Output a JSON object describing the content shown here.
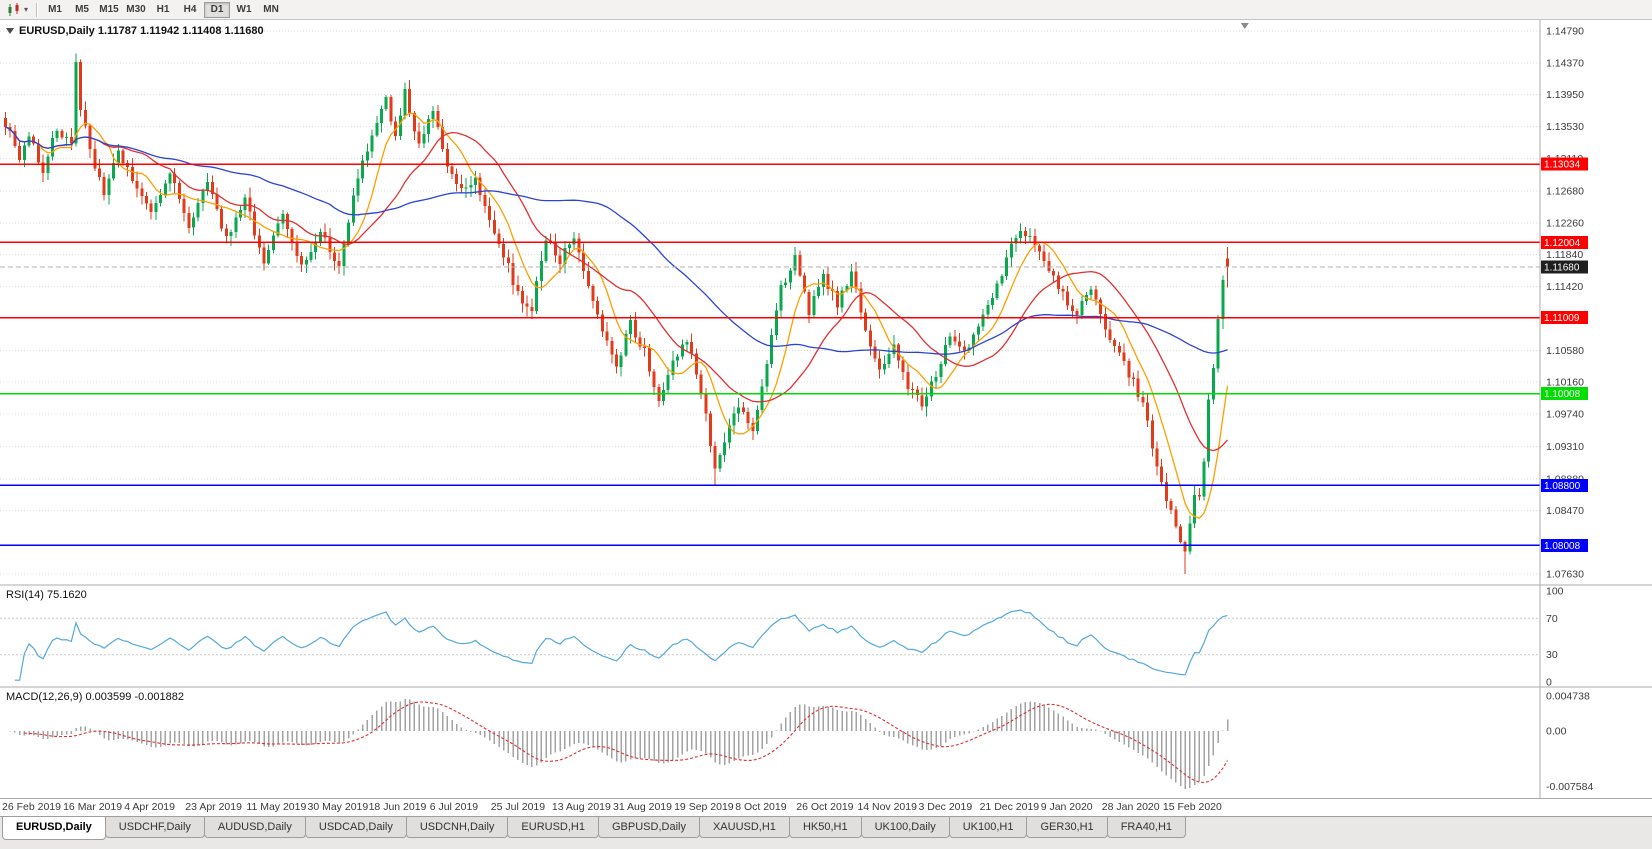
{
  "toolbar": {
    "timeframes": [
      {
        "label": "M1",
        "active": false
      },
      {
        "label": "M5",
        "active": false
      },
      {
        "label": "M15",
        "active": false
      },
      {
        "label": "M30",
        "active": false
      },
      {
        "label": "H1",
        "active": false
      },
      {
        "label": "H4",
        "active": false
      },
      {
        "label": "D1",
        "active": true
      },
      {
        "label": "W1",
        "active": false
      },
      {
        "label": "MN",
        "active": false
      }
    ]
  },
  "chart_data": {
    "type": "candlestick",
    "symbol": "EURUSD",
    "period": "Daily",
    "header": "EURUSD,Daily 1.11787 1.11942 1.11408 1.11680",
    "ohlc": {
      "open": 1.11787,
      "high": 1.11942,
      "low": 1.11408,
      "close": 1.1168
    },
    "price_axis": {
      "max": 1.14935,
      "min": 1.07485,
      "labels": [
        "1.14790",
        "1.14370",
        "1.13950",
        "1.13530",
        "1.13110",
        "1.12680",
        "1.12260",
        "1.11840",
        "1.11420",
        "1.10580",
        "1.10160",
        "1.09740",
        "1.09310",
        "1.08880",
        "1.08470",
        "1.07630"
      ]
    },
    "x_axis_labels": [
      "26 Feb 2019",
      "16 Mar 2019",
      "4 Apr 2019",
      "23 Apr 2019",
      "11 May 2019",
      "30 May 2019",
      "18 Jun 2019",
      "6 Jul 2019",
      "25 Jul 2019",
      "13 Aug 2019",
      "31 Aug 2019",
      "19 Sep 2019",
      "8 Oct 2019",
      "26 Oct 2019",
      "14 Nov 2019",
      "3 Dec 2019",
      "21 Dec 2019",
      "9 Jan 2020",
      "28 Jan 2020",
      "15 Feb 2020"
    ],
    "levels": [
      {
        "price": 1.13034,
        "label": "1.13034",
        "color": "#ff0000",
        "width": 1.2
      },
      {
        "price": 1.12004,
        "label": "1.12004",
        "color": "#ff0000",
        "width": 1.6
      },
      {
        "price": 1.11009,
        "label": "1.11009",
        "color": "#ff0000",
        "width": 1.2
      },
      {
        "price": 1.10008,
        "label": "1.10008",
        "color": "#00dd00",
        "width": 1.6
      },
      {
        "price": 1.088,
        "label": "1.08800",
        "color": "#0000ff",
        "width": 1.6
      },
      {
        "price": 1.08008,
        "label": "1.08008",
        "color": "#0000ff",
        "width": 1.6
      }
    ],
    "current_price": {
      "value": 1.1168,
      "label": "1.11680",
      "line_color": "#b0b0b0",
      "tag_color": "#1f1f1f"
    },
    "colors": {
      "bull": "#09a84e",
      "bear": "#e23b1c",
      "background": "#ffffff",
      "grid": "#dcdcdc"
    },
    "candle_count": 261,
    "close_anchors": [
      [
        0,
        1.1358
      ],
      [
        3,
        1.131
      ],
      [
        5,
        1.1342
      ],
      [
        8,
        1.1296
      ],
      [
        11,
        1.135
      ],
      [
        14,
        1.133
      ],
      [
        15,
        1.1435
      ],
      [
        16,
        1.1378
      ],
      [
        19,
        1.13
      ],
      [
        21,
        1.1262
      ],
      [
        24,
        1.132
      ],
      [
        27,
        1.1285
      ],
      [
        31,
        1.1235
      ],
      [
        35,
        1.129
      ],
      [
        39,
        1.1225
      ],
      [
        43,
        1.1275
      ],
      [
        47,
        1.1205
      ],
      [
        51,
        1.1255
      ],
      [
        55,
        1.1175
      ],
      [
        59,
        1.1235
      ],
      [
        63,
        1.1165
      ],
      [
        67,
        1.1215
      ],
      [
        71,
        1.1168
      ],
      [
        75,
        1.129
      ],
      [
        78,
        1.134
      ],
      [
        81,
        1.1388
      ],
      [
        83,
        1.134
      ],
      [
        85,
        1.1398
      ],
      [
        88,
        1.133
      ],
      [
        91,
        1.1372
      ],
      [
        94,
        1.13
      ],
      [
        97,
        1.127
      ],
      [
        100,
        1.1286
      ],
      [
        103,
        1.123
      ],
      [
        106,
        1.1185
      ],
      [
        109,
        1.113
      ],
      [
        112,
        1.1115
      ],
      [
        115,
        1.1205
      ],
      [
        118,
        1.1175
      ],
      [
        121,
        1.1212
      ],
      [
        124,
        1.1145
      ],
      [
        127,
        1.108
      ],
      [
        130,
        1.104
      ],
      [
        133,
        1.1092
      ],
      [
        136,
        1.1055
      ],
      [
        139,
        1.0995
      ],
      [
        142,
        1.1045
      ],
      [
        145,
        1.1072
      ],
      [
        148,
        1.1005
      ],
      [
        151,
        1.0905
      ],
      [
        153,
        1.0938
      ],
      [
        156,
        1.0985
      ],
      [
        159,
        1.0952
      ],
      [
        162,
        1.1045
      ],
      [
        165,
        1.114
      ],
      [
        168,
        1.1178
      ],
      [
        171,
        1.111
      ],
      [
        174,
        1.1152
      ],
      [
        177,
        1.112
      ],
      [
        180,
        1.1162
      ],
      [
        183,
        1.108
      ],
      [
        186,
        1.103
      ],
      [
        189,
        1.1065
      ],
      [
        192,
        1.101
      ],
      [
        195,
        1.0985
      ],
      [
        198,
        1.1025
      ],
      [
        201,
        1.1082
      ],
      [
        204,
        1.1052
      ],
      [
        207,
        1.1095
      ],
      [
        210,
        1.1125
      ],
      [
        213,
        1.118
      ],
      [
        216,
        1.1218
      ],
      [
        219,
        1.1196
      ],
      [
        222,
        1.1162
      ],
      [
        225,
        1.113
      ],
      [
        228,
        1.1105
      ],
      [
        231,
        1.1142
      ],
      [
        234,
        1.1085
      ],
      [
        237,
        1.1055
      ],
      [
        240,
        1.1015
      ],
      [
        242,
        1.0985
      ],
      [
        244,
        1.0935
      ],
      [
        246,
        1.0885
      ],
      [
        248,
        1.0845
      ],
      [
        250,
        1.08
      ],
      [
        251,
        1.0786
      ],
      [
        252,
        1.083
      ],
      [
        253,
        1.0872
      ],
      [
        254,
        1.0862
      ],
      [
        255,
        1.0905
      ],
      [
        256,
        1.0995
      ],
      [
        257,
        1.1035
      ],
      [
        258,
        1.1105
      ],
      [
        259,
        1.1145
      ],
      [
        260,
        1.1168
      ]
    ],
    "wick_high_overrides": [
      [
        15,
        1.1449
      ],
      [
        85,
        1.141
      ]
    ],
    "wick_low_overrides": [
      [
        151,
        1.0879
      ],
      [
        251,
        1.0763
      ]
    ],
    "moving_averages": [
      {
        "name": "ma-fast-line",
        "period": 8,
        "color": "#ff9f00"
      },
      {
        "name": "ma-mid-line",
        "period": 21,
        "color": "#e33030"
      },
      {
        "name": "ma-slow-line",
        "period": 55,
        "color": "#2b44d4"
      }
    ],
    "rsi": {
      "label": "RSI(14) 75.1620",
      "period": 14,
      "value": 75.162,
      "line_color": "#54a8dd",
      "level_lines": [
        70,
        30
      ],
      "axis_labels": [
        {
          "text": "100",
          "value": 100
        },
        {
          "text": "70",
          "value": 70
        },
        {
          "text": "30",
          "value": 30
        },
        {
          "text": "0",
          "value": 0
        }
      ]
    },
    "macd": {
      "label": "MACD(12,26,9) 0.003599 -0.001882",
      "fast": 12,
      "slow": 26,
      "signal_period": 9,
      "macd_value": 0.003599,
      "signal_value": -0.001882,
      "scale_max": 0.0053,
      "scale_min": -0.0083,
      "histogram_color": "#a3a3a3",
      "signal_color": "#e03030",
      "axis_labels": [
        {
          "text": "0.004738",
          "value": 0.004738
        },
        {
          "text": "0.00",
          "value": 0.0
        },
        {
          "text": "-0.007584",
          "value": -0.007584
        }
      ]
    }
  },
  "tabs": [
    {
      "label": "EURUSD,Daily",
      "active": true
    },
    {
      "label": "USDCHF,Daily",
      "active": false
    },
    {
      "label": "AUDUSD,Daily",
      "active": false
    },
    {
      "label": "USDCAD,Daily",
      "active": false
    },
    {
      "label": "USDCNH,Daily",
      "active": false
    },
    {
      "label": "EURUSD,H1",
      "active": false
    },
    {
      "label": "GBPUSD,Daily",
      "active": false
    },
    {
      "label": "XAUUSD,H1",
      "active": false
    },
    {
      "label": "HK50,H1",
      "active": false
    },
    {
      "label": "UK100,Daily",
      "active": false
    },
    {
      "label": "UK100,H1",
      "active": false
    },
    {
      "label": "GER30,H1",
      "active": false
    },
    {
      "label": "FRA40,H1",
      "active": false
    }
  ]
}
